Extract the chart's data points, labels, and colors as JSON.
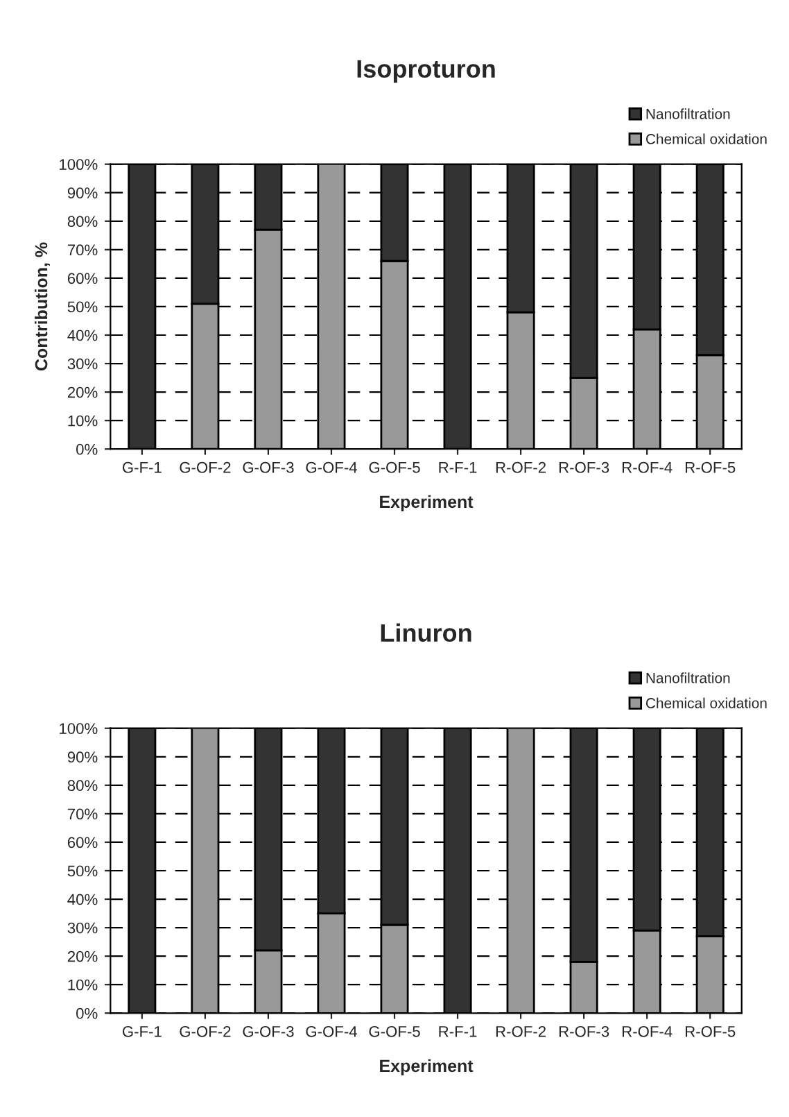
{
  "chart_data": [
    {
      "type": "bar",
      "title": "Isoproturon",
      "xlabel": "Experiment",
      "ylabel": "Contribution, %",
      "stacked": true,
      "categories": [
        "G-F-1",
        "G-OF-2",
        "G-OF-3",
        "G-OF-4",
        "G-OF-5",
        "R-F-1",
        "R-OF-2",
        "R-OF-3",
        "R-OF-4",
        "R-OF-5"
      ],
      "series": [
        {
          "name": "Chemical oxidation",
          "color": "#999999",
          "values": [
            0,
            51,
            77,
            100,
            66,
            0,
            48,
            25,
            42,
            33
          ]
        },
        {
          "name": "Nanofiltration",
          "color": "#333333",
          "values": [
            100,
            49,
            23,
            0,
            34,
            100,
            52,
            75,
            58,
            67
          ]
        }
      ],
      "ylim": [
        0,
        100
      ],
      "yticks": [
        {
          "value": 0,
          "label": "0%"
        },
        {
          "value": 10,
          "label": "10%"
        },
        {
          "value": 20,
          "label": "20%"
        },
        {
          "value": 30,
          "label": "30%"
        },
        {
          "value": 40,
          "label": "40%"
        },
        {
          "value": 50,
          "label": "50%"
        },
        {
          "value": 60,
          "label": "60%"
        },
        {
          "value": 70,
          "label": "70%"
        },
        {
          "value": 80,
          "label": "80%"
        },
        {
          "value": 90,
          "label": "90%"
        },
        {
          "value": 100,
          "label": "100%"
        }
      ],
      "grid": "y",
      "legend": "top right"
    },
    {
      "type": "bar",
      "title": "Linuron",
      "xlabel": "Experiment",
      "stacked": true,
      "categories": [
        "G-F-1",
        "G-OF-2",
        "G-OF-3",
        "G-OF-4",
        "G-OF-5",
        "R-F-1",
        "R-OF-2",
        "R-OF-3",
        "R-OF-4",
        "R-OF-5"
      ],
      "series": [
        {
          "name": "Chemical oxidation",
          "color": "#999999",
          "values": [
            0,
            100,
            22,
            35,
            31,
            0,
            100,
            18,
            29,
            27
          ]
        },
        {
          "name": "Nanofiltration",
          "color": "#333333",
          "values": [
            100,
            0,
            78,
            65,
            69,
            100,
            0,
            82,
            71,
            73
          ]
        }
      ],
      "ylim": [
        0,
        100
      ],
      "yticks": [
        {
          "value": 0,
          "label": "0%"
        },
        {
          "value": 10,
          "label": "10%"
        },
        {
          "value": 20,
          "label": "20%"
        },
        {
          "value": 30,
          "label": "30%"
        },
        {
          "value": 40,
          "label": "40%"
        },
        {
          "value": 50,
          "label": "50%"
        },
        {
          "value": 60,
          "label": "60%"
        },
        {
          "value": 70,
          "label": "70%"
        },
        {
          "value": 80,
          "label": "80%"
        },
        {
          "value": 90,
          "label": "90%"
        },
        {
          "value": 100,
          "label": "100%"
        }
      ],
      "grid": "y",
      "legend": "top right"
    }
  ]
}
